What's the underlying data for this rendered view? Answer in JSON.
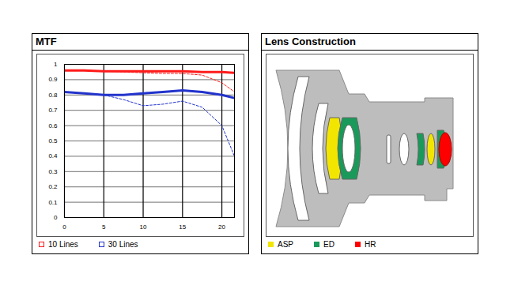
{
  "chart_data": {
    "type": "line",
    "title": "MTF",
    "x": [
      0,
      2.5,
      5,
      7.5,
      10,
      12.5,
      15,
      17.5,
      20,
      21.6
    ],
    "series": [
      {
        "name": "10 Lines",
        "color": "#ff1a1a",
        "line_style": "solid",
        "values": [
          0.96,
          0.96,
          0.955,
          0.955,
          0.955,
          0.955,
          0.955,
          0.95,
          0.95,
          0.945
        ]
      },
      {
        "name": "10 Lines",
        "color": "#ff1a1a",
        "line_style": "dashed",
        "values": [
          0.96,
          0.96,
          0.955,
          0.95,
          0.945,
          0.94,
          0.94,
          0.93,
          0.88,
          0.82
        ]
      },
      {
        "name": "30 Lines",
        "color": "#2233cc",
        "line_style": "solid",
        "values": [
          0.82,
          0.81,
          0.8,
          0.8,
          0.81,
          0.82,
          0.83,
          0.82,
          0.8,
          0.78
        ]
      },
      {
        "name": "30 Lines",
        "color": "#2233cc",
        "line_style": "dashed",
        "values": [
          0.82,
          0.81,
          0.8,
          0.77,
          0.73,
          0.74,
          0.76,
          0.72,
          0.6,
          0.4
        ]
      }
    ],
    "xlim": [
      0,
      21.6
    ],
    "xticks": [
      0,
      5,
      10,
      15,
      20
    ],
    "ylim": [
      0,
      1
    ],
    "yticks": [
      0,
      0.1,
      0.2,
      0.3,
      0.4,
      0.5,
      0.6,
      0.7,
      0.8,
      0.9,
      1
    ],
    "grid": true,
    "legend": "bottom"
  },
  "lens_construction": {
    "title": "Lens Construction",
    "labels": [
      {
        "label": "ASP",
        "color": "#f2e600"
      },
      {
        "label": "ED",
        "color": "#1a9a5a"
      },
      {
        "label": "HR",
        "color": "#ff0000"
      }
    ]
  }
}
